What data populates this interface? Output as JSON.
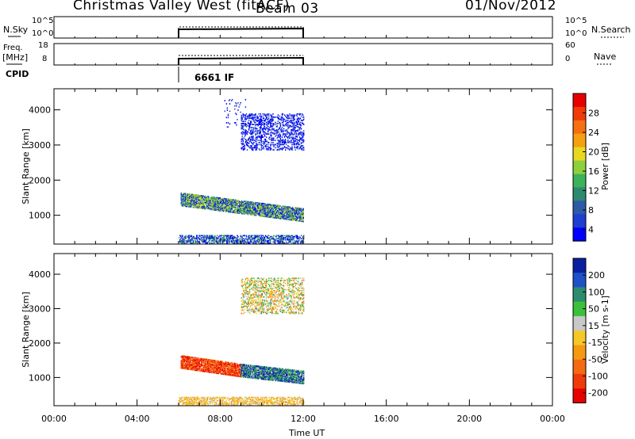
{
  "header": {
    "title": "Christmas Valley West (fitACF)",
    "beam": "Beam 03",
    "date": "01/Nov/2012"
  },
  "top_panels": {
    "nsky_label": "N.Sky",
    "nsearch_label": "N.Search",
    "freq_label": "Freq.",
    "freq_unit": "[MHz]",
    "nave_label": "Nave",
    "cpid_label": "CPID",
    "cpid_value": "6661 IF",
    "noise_ticks": [
      "10^5",
      "10^0"
    ],
    "freq_ticks": [
      "18",
      "8"
    ],
    "nave_ticks": [
      "60",
      "0"
    ]
  },
  "time_axis": {
    "ticks": [
      "00:00",
      "04:00",
      "08:00",
      "12:00",
      "16:00",
      "20:00",
      "00:00"
    ],
    "label": "Time UT"
  },
  "power_colorbar": {
    "label": "Power [dB]",
    "ticks": [
      "28",
      "24",
      "20",
      "16",
      "12",
      "8",
      "4"
    ],
    "colors": [
      "#0000ff",
      "#1e3fd0",
      "#2e5aa8",
      "#2e8a6e",
      "#3cb35a",
      "#8ecf3c",
      "#e8d820",
      "#f5a010",
      "#f57010",
      "#f03a0a",
      "#e80000"
    ]
  },
  "velocity_colorbar": {
    "label": "Velocity [m s-1]",
    "ticks": [
      "200",
      "100",
      "50",
      "15",
      "-15",
      "-50",
      "-100",
      "-200"
    ],
    "colors": [
      "#0a1fa0",
      "#1e50c8",
      "#2e8c6e",
      "#3cc03c",
      "#c8c8c8",
      "#f5c828",
      "#f59a10",
      "#f56a10",
      "#f03a0a",
      "#e80000"
    ]
  },
  "chart_data": [
    {
      "type": "heatmap",
      "name": "power",
      "xlabel": "",
      "ylabel": "Slant Range [km]",
      "x_range_hours": [
        0,
        24
      ],
      "ylim": [
        180,
        4600
      ],
      "yticks": [
        1000,
        2000,
        3000,
        4000
      ],
      "clim": [
        0,
        32
      ],
      "regions": [
        {
          "t": [
            6.0,
            12.0
          ],
          "r": [
            200,
            420
          ],
          "v_mean": 6,
          "v_spread": 8,
          "density": 0.55
        },
        {
          "t": [
            6.1,
            12.0
          ],
          "r_start": [
            1450,
            1000
          ],
          "width_km": 380,
          "v_mean": 10,
          "v_spread": 10,
          "density": 0.85
        },
        {
          "t": [
            9.0,
            12.0
          ],
          "r": [
            2850,
            3900
          ],
          "v_mean": 3,
          "v_spread": 3,
          "density": 0.35
        },
        {
          "t": [
            8.2,
            9.2
          ],
          "r": [
            3500,
            4300
          ],
          "v_mean": 3,
          "v_spread": 3,
          "density": 0.05
        }
      ]
    },
    {
      "type": "heatmap",
      "name": "velocity",
      "xlabel": "Time UT",
      "ylabel": "Slant Range [km]",
      "x_range_hours": [
        0,
        24
      ],
      "ylim": [
        180,
        4600
      ],
      "yticks": [
        1000,
        2000,
        3000,
        4000
      ],
      "clim": [
        -250,
        250
      ],
      "regions": [
        {
          "t": [
            6.0,
            12.0
          ],
          "r": [
            200,
            420
          ],
          "v_mean": -30,
          "v_spread": 60,
          "density": 0.55
        },
        {
          "t": [
            6.1,
            9.0
          ],
          "r_start": [
            1450,
            1200
          ],
          "width_km": 380,
          "v_mean": -170,
          "v_spread": 80,
          "density": 0.85
        },
        {
          "t": [
            9.0,
            12.0
          ],
          "r_start": [
            1200,
            1000
          ],
          "width_km": 380,
          "v_mean": 150,
          "v_spread": 120,
          "density": 0.85
        },
        {
          "t": [
            9.0,
            12.0
          ],
          "r": [
            2850,
            3900
          ],
          "v_mean": 0,
          "v_spread": 120,
          "density": 0.35
        }
      ]
    }
  ]
}
